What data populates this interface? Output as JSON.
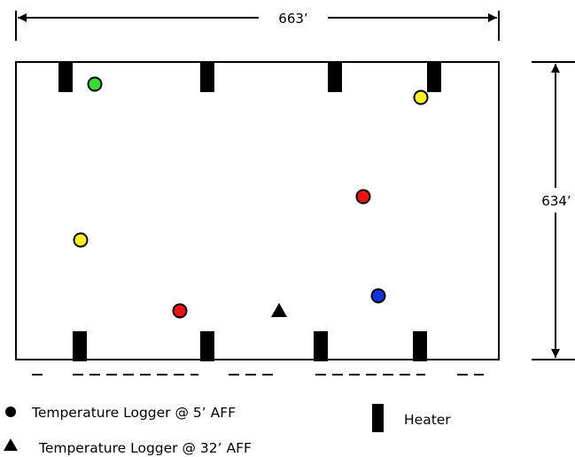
{
  "dimensions": {
    "width_label": "663’",
    "height_label": "634’"
  },
  "heaters": {
    "top_count": 4,
    "bottom_count": 4
  },
  "loggers_5ft": [
    {
      "name": "green-logger",
      "color": "#33dd33"
    },
    {
      "name": "yellow-logger-top-right",
      "color": "#ffee22"
    },
    {
      "name": "red-logger-middle-right",
      "color": "#ee1111"
    },
    {
      "name": "yellow-logger-left",
      "color": "#ffee22"
    },
    {
      "name": "red-logger-bottom",
      "color": "#ee1111"
    },
    {
      "name": "blue-logger",
      "color": "#1133dd"
    }
  ],
  "legend": {
    "logger_5ft": "Temperature Logger @ 5’ AFF",
    "logger_32ft": "Temperature Logger @ 32’ AFF",
    "heater": "Heater"
  }
}
